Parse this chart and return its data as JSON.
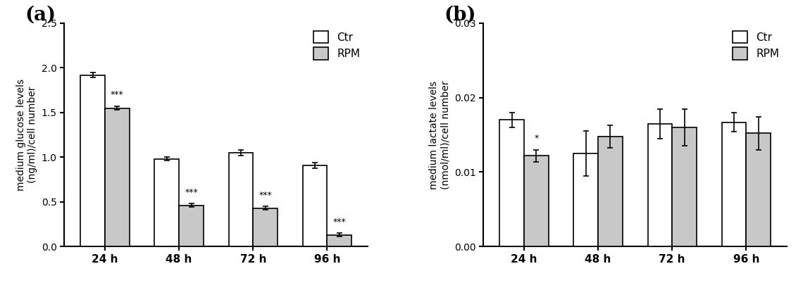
{
  "panel_a": {
    "title": "(a)",
    "ylabel": "medium glucose levels\n(ng/ml)/cell number",
    "xlabel_ticks": [
      "24 h",
      "48 h",
      "72 h",
      "96 h"
    ],
    "ctr_values": [
      1.92,
      0.98,
      1.05,
      0.91
    ],
    "rpm_values": [
      1.55,
      0.46,
      0.43,
      0.13
    ],
    "ctr_errors": [
      0.03,
      0.02,
      0.03,
      0.03
    ],
    "rpm_errors": [
      0.02,
      0.02,
      0.02,
      0.02
    ],
    "ylim": [
      0,
      2.5
    ],
    "yticks": [
      0.0,
      0.5,
      1.0,
      1.5,
      2.0,
      2.5
    ],
    "ytick_labels": [
      "0.0",
      "0.5",
      "1.0",
      "1.5",
      "2.0",
      "2.5"
    ],
    "significance": [
      "***",
      "***",
      "***",
      "***"
    ],
    "ctr_color": "#ffffff",
    "rpm_color": "#c8c8c8",
    "bar_edgecolor": "#000000"
  },
  "panel_b": {
    "title": "(b)",
    "ylabel": "medium lactate levels\n(nmol/ml)/cell number",
    "xlabel_ticks": [
      "24 h",
      "48 h",
      "72 h",
      "96 h"
    ],
    "ctr_values": [
      0.017,
      0.0125,
      0.0165,
      0.0167
    ],
    "rpm_values": [
      0.0122,
      0.0148,
      0.016,
      0.0152
    ],
    "ctr_errors": [
      0.001,
      0.003,
      0.002,
      0.0013
    ],
    "rpm_errors": [
      0.0008,
      0.0015,
      0.0025,
      0.0022
    ],
    "ylim": [
      0,
      0.03
    ],
    "yticks": [
      0.0,
      0.01,
      0.02,
      0.03
    ],
    "ytick_labels": [
      "0.00",
      "0.01",
      "0.02",
      "0.03"
    ],
    "significance": [
      "*",
      null,
      null,
      null
    ],
    "ctr_color": "#ffffff",
    "rpm_color": "#c8c8c8",
    "bar_edgecolor": "#000000"
  },
  "legend_labels": [
    "Ctr",
    "RPM"
  ],
  "bar_width": 0.33,
  "sig_color": "#000000",
  "legend_text_color": "#000000",
  "fig_width": 11.4,
  "fig_height": 4.12,
  "dpi": 100
}
